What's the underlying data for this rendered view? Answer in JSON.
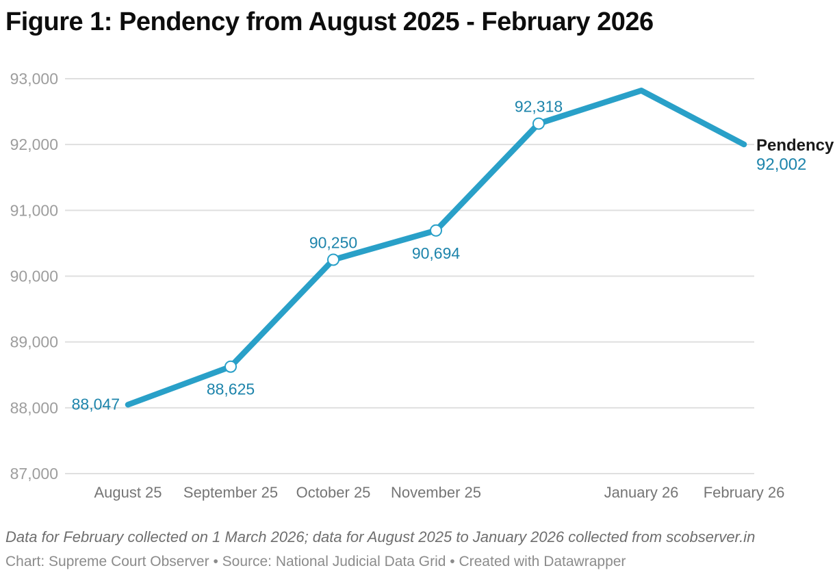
{
  "page": {
    "title": "Figure 1: Pendency from August 2025 - February 2026",
    "footnote": "Data for February collected on 1 March 2026; data for August 2025 to January 2026 collected from scobserver.in",
    "attribution": "Chart: Supreme Court Observer • Source: National Judicial Data Grid • Created with Datawrapper"
  },
  "chart_data": {
    "type": "line",
    "title": "Figure 1: Pendency from August 2025 - February 2026",
    "xlabel": "",
    "ylabel": "",
    "ylim": [
      87000,
      93000
    ],
    "grid": true,
    "legend_position": "line-end",
    "y_ticks": [
      {
        "value": 93000,
        "label": "93,000"
      },
      {
        "value": 92000,
        "label": "92,000"
      },
      {
        "value": 91000,
        "label": "91,000"
      },
      {
        "value": 90000,
        "label": "90,000"
      },
      {
        "value": 89000,
        "label": "89,000"
      },
      {
        "value": 88000,
        "label": "88,000"
      },
      {
        "value": 87000,
        "label": "87,000"
      }
    ],
    "series": [
      {
        "name": "Pendency",
        "points": [
          {
            "x_label": "August 25",
            "value": 88047,
            "value_label": "88,047",
            "label_placement": "left",
            "marker": false
          },
          {
            "x_label": "September 25",
            "value": 88625,
            "value_label": "88,625",
            "label_placement": "below",
            "marker": true
          },
          {
            "x_label": "October 25",
            "value": 90250,
            "value_label": "90,250",
            "label_placement": "above",
            "marker": true
          },
          {
            "x_label": "November 25",
            "value": 90694,
            "value_label": "90,694",
            "label_placement": "below",
            "marker": true
          },
          {
            "x_label": "",
            "value": 92318,
            "value_label": "92,318",
            "label_placement": "above",
            "marker": true
          },
          {
            "x_label": "January 26",
            "value": 92820,
            "value_label": "",
            "label_placement": "none",
            "marker": false
          },
          {
            "x_label": "February 26",
            "value": 92002,
            "value_label": "92,002",
            "label_placement": "end",
            "marker": false
          }
        ]
      }
    ],
    "colors": {
      "line": "#29a0c8",
      "value_label": "#1d84ab",
      "series_end_label": "#1a1a1a",
      "grid": "#dfdfdf",
      "y_tick": "#9d9d9d",
      "x_tick": "#757575"
    }
  }
}
